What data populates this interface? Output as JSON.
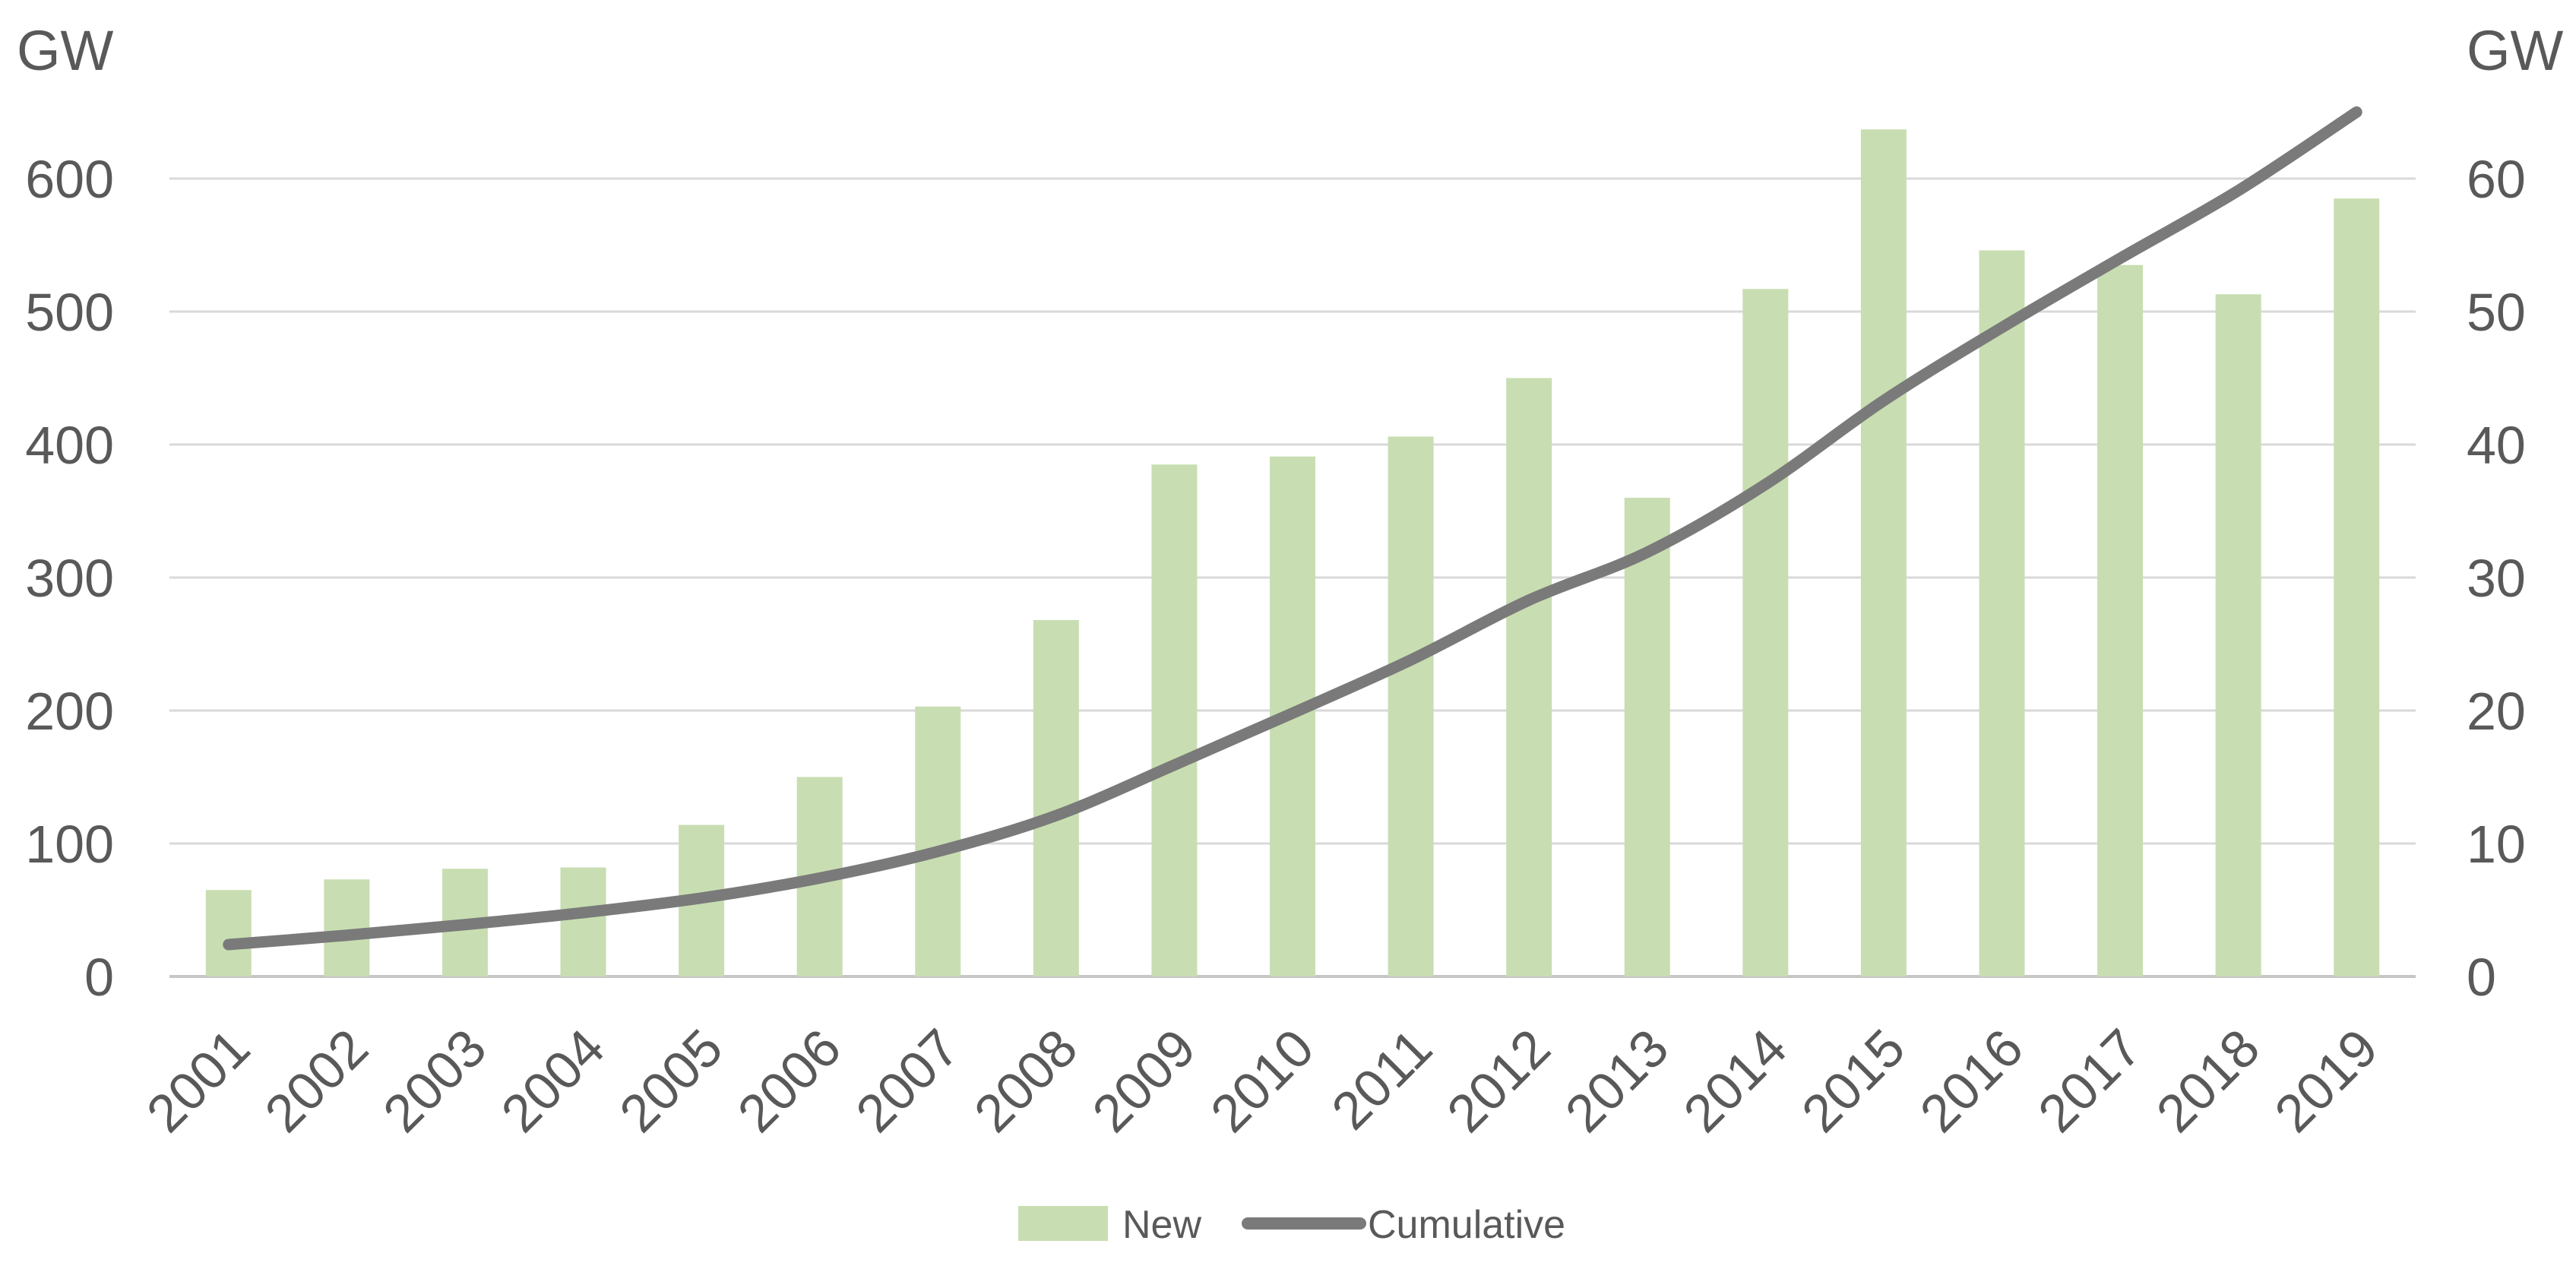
{
  "chart_data": {
    "type": "combo",
    "title": "",
    "categories": [
      "2001",
      "2002",
      "2003",
      "2004",
      "2005",
      "2006",
      "2007",
      "2008",
      "2009",
      "2010",
      "2011",
      "2012",
      "2013",
      "2014",
      "2015",
      "2016",
      "2017",
      "2018",
      "2019"
    ],
    "series": [
      {
        "name": "New",
        "kind": "bar",
        "axis": "right",
        "color": "#c8deb2",
        "values": [
          6.5,
          7.3,
          8.1,
          8.2,
          11.4,
          15.0,
          20.3,
          26.8,
          38.5,
          39.1,
          40.6,
          45.0,
          36.0,
          51.7,
          63.7,
          54.6,
          53.5,
          51.3,
          58.5
        ]
      },
      {
        "name": "Cumulative",
        "kind": "line",
        "axis": "left",
        "color": "#7a7a7a",
        "values": [
          24,
          31,
          39,
          48,
          59,
          74,
          94,
          121,
          159,
          198,
          238,
          283,
          319,
          370,
          433,
          488,
          540,
          591,
          650
        ]
      }
    ],
    "left_axis": {
      "title": "GW",
      "min": 0,
      "max": 650,
      "major_unit": 100,
      "tick_labels": [
        "0",
        "100",
        "200",
        "300",
        "400",
        "500",
        "600"
      ]
    },
    "right_axis": {
      "title": "GW",
      "min": 0,
      "max": 65,
      "major_unit": 10,
      "tick_labels": [
        "0",
        "10",
        "20",
        "30",
        "40",
        "50",
        "60"
      ]
    },
    "legend": {
      "position": "bottom-center",
      "items": [
        {
          "label": "New",
          "marker": "rect"
        },
        {
          "label": "Cumulative",
          "marker": "line"
        }
      ]
    },
    "grid": {
      "horizontal": true,
      "vertical": false
    },
    "colors": {
      "bar_fill": "#c8deb2",
      "line_stroke": "#7a7a7a",
      "gridline": "#d9d9d9",
      "axis_line": "#c6c6c6",
      "text": "#595959",
      "background": "#ffffff"
    }
  }
}
